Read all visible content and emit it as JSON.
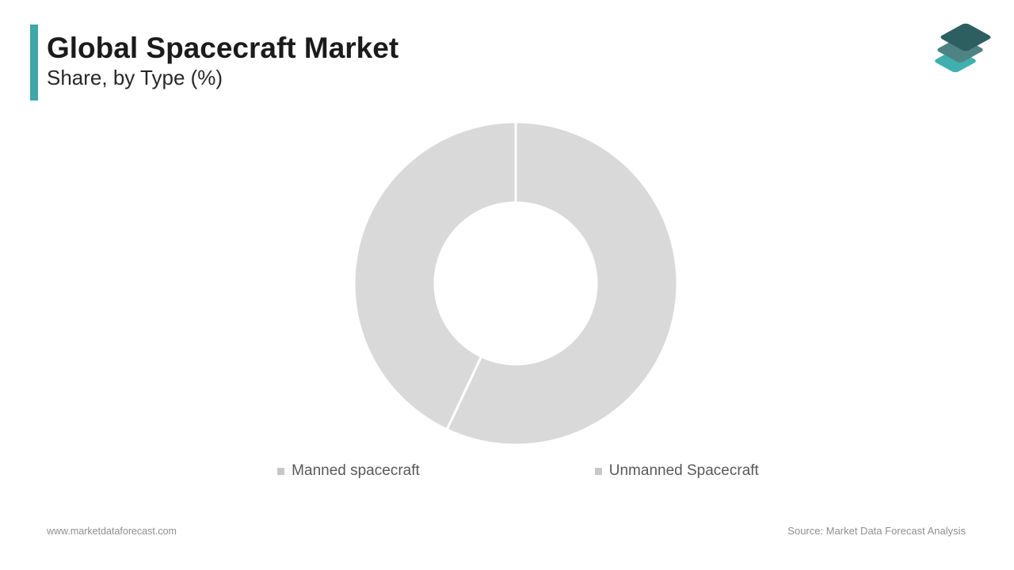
{
  "header": {
    "title": "Global Spacecraft Market",
    "subtitle": "Share, by Type (%)",
    "accent_color": "#3FA7A7",
    "logo": {
      "name": "market-data-forecast-logo",
      "layer_colors": [
        "#3FB0AD",
        "#4E8384",
        "#2E5F60"
      ]
    }
  },
  "chart_data": {
    "type": "pie",
    "variant": "donut",
    "title": "Global Spacecraft Market Share, by Type (%)",
    "categories": [
      "Manned spacecraft",
      "Unmanned Spacecraft"
    ],
    "values": [
      57,
      43
    ],
    "segment_colors": [
      "#D9D9D9",
      "#D9D9D9"
    ],
    "divider_color": "#FFFFFF",
    "start_angle_deg": 0,
    "direction": "clockwise",
    "inner_radius_ratio": 0.5,
    "legend_position": "bottom",
    "legend_marker_color": "#C7C7C7",
    "data_labels_shown": false
  },
  "footer": {
    "website": "www.marketdataforecast.com",
    "source": "Source: Market Data Forecast Analysis"
  }
}
